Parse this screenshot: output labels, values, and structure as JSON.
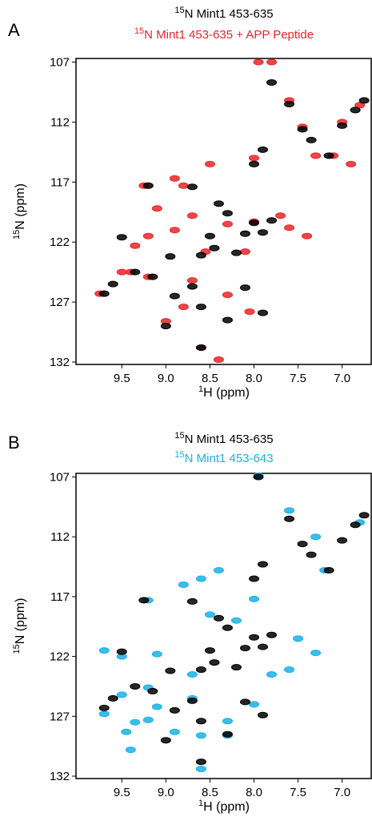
{
  "chart_data": [
    {
      "type": "scatter",
      "panel": "A",
      "series": [
        {
          "isotope": "15",
          "name": "N Mint1 453-635",
          "color": "#000000",
          "x": [
            7.8,
            7.6,
            7.45,
            7.35,
            7.0,
            6.85,
            6.75,
            7.15,
            7.9,
            8.0,
            9.2,
            8.7,
            8.4,
            8.3,
            8.0,
            7.8,
            7.9,
            8.1,
            8.5,
            8.45,
            8.2,
            8.6,
            9.5,
            8.95,
            9.35,
            9.15,
            8.7,
            9.6,
            9.7,
            8.9,
            7.9,
            8.6,
            9.0,
            8.6,
            8.3,
            8.1
          ],
          "values": [
            108.7,
            110.5,
            112.6,
            113.5,
            112.3,
            111.0,
            110.2,
            114.8,
            114.3,
            115.5,
            117.3,
            117.4,
            118.8,
            119.6,
            120.4,
            120.2,
            121.2,
            121.3,
            121.5,
            122.5,
            122.9,
            123.1,
            121.6,
            123.2,
            124.5,
            124.9,
            125.7,
            125.5,
            126.3,
            126.5,
            127.9,
            127.4,
            129.0,
            130.8,
            128.5,
            125.8
          ]
        },
        {
          "isotope": "15",
          "name": "N Mint1 453-635 + APP Peptide",
          "color": "#e8262a",
          "x": [
            7.95,
            7.8,
            7.6,
            7.45,
            7.0,
            6.8,
            7.1,
            9.25,
            8.8,
            8.5,
            8.9,
            9.1,
            8.7,
            8.3,
            8.0,
            7.7,
            7.6,
            7.4,
            8.9,
            9.2,
            9.35,
            8.55,
            8.1,
            9.4,
            9.2,
            8.7,
            9.5,
            9.75,
            8.3,
            8.8,
            9.0,
            8.05,
            8.6,
            8.4,
            8.0,
            7.3,
            6.9
          ],
          "values": [
            107.0,
            107.0,
            110.2,
            112.4,
            112.0,
            110.6,
            114.8,
            117.3,
            117.3,
            115.5,
            116.7,
            119.2,
            119.8,
            120.5,
            120.3,
            119.8,
            120.8,
            121.5,
            121.0,
            121.5,
            122.3,
            122.8,
            122.8,
            124.5,
            124.9,
            125.2,
            124.5,
            126.3,
            126.4,
            127.4,
            128.6,
            127.8,
            130.8,
            131.8,
            115.0,
            114.8,
            115.5
          ]
        }
      ],
      "x_label": {
        "sup": "1",
        "text": "H (ppm)"
      },
      "y_label": {
        "sup": "15",
        "text": "N (ppm)"
      },
      "xlim": [
        10.02,
        6.67
      ],
      "ylim": [
        106.7,
        132.2
      ],
      "xticks": [
        {
          "value": 9.5,
          "label": "9.5"
        },
        {
          "value": 9.0,
          "label": "9.0"
        },
        {
          "value": 8.5,
          "label": "8.5"
        },
        {
          "value": 8.0,
          "label": "8.0"
        },
        {
          "value": 7.5,
          "label": "7.5"
        },
        {
          "value": 7.0,
          "label": "7.0"
        }
      ],
      "yticks": [
        107,
        112,
        117,
        122,
        127,
        132
      ]
    },
    {
      "type": "scatter",
      "panel": "B",
      "series": [
        {
          "isotope": "15",
          "name": "N Mint1 453-635",
          "color": "#000000",
          "x": [
            7.95,
            7.6,
            7.45,
            7.35,
            7.0,
            6.85,
            6.75,
            7.15,
            7.9,
            8.0,
            9.25,
            8.7,
            8.4,
            8.3,
            8.0,
            7.8,
            7.9,
            8.1,
            8.5,
            8.45,
            8.2,
            8.6,
            9.5,
            8.95,
            9.35,
            9.15,
            8.7,
            9.6,
            9.7,
            8.9,
            7.9,
            8.6,
            9.0,
            8.6,
            8.3,
            8.1
          ],
          "values": [
            107.0,
            110.5,
            112.6,
            113.5,
            112.3,
            111.0,
            110.2,
            114.8,
            114.3,
            115.5,
            117.3,
            117.4,
            118.8,
            119.6,
            120.4,
            120.2,
            121.2,
            121.3,
            121.5,
            122.5,
            122.9,
            123.1,
            121.6,
            123.2,
            124.5,
            124.9,
            125.7,
            125.5,
            126.3,
            126.5,
            126.9,
            127.4,
            129.0,
            130.8,
            128.5,
            125.8
          ]
        },
        {
          "isotope": "15",
          "name": "N Mint1 453-643",
          "color": "#1ab2e6",
          "x": [
            7.95,
            7.6,
            7.3,
            6.8,
            7.2,
            9.7,
            9.2,
            8.8,
            8.6,
            8.4,
            8.5,
            8.2,
            8.0,
            7.5,
            7.3,
            7.6,
            9.5,
            9.1,
            8.7,
            9.2,
            9.5,
            9.7,
            9.1,
            9.2,
            9.45,
            8.9,
            8.6,
            8.3,
            9.4,
            8.6,
            8.3,
            8.0,
            7.8,
            8.7,
            9.35
          ],
          "values": [
            106.9,
            109.8,
            112.0,
            110.8,
            114.8,
            121.5,
            117.3,
            116.0,
            115.5,
            114.8,
            118.5,
            119.0,
            117.2,
            120.5,
            121.7,
            123.1,
            122.0,
            121.8,
            123.5,
            124.6,
            125.2,
            126.8,
            126.2,
            127.3,
            128.3,
            128.3,
            128.6,
            128.6,
            129.8,
            131.4,
            127.4,
            126.0,
            123.5,
            125.5,
            127.5
          ]
        }
      ],
      "x_label": {
        "sup": "1",
        "text": "H (ppm)"
      },
      "y_label": {
        "sup": "15",
        "text": "N (ppm)"
      },
      "xlim": [
        10.02,
        6.67
      ],
      "ylim": [
        106.7,
        132.2
      ],
      "xticks": [
        {
          "value": 9.5,
          "label": "9.5"
        },
        {
          "value": 9.0,
          "label": "9.0"
        },
        {
          "value": 8.5,
          "label": "8.5"
        },
        {
          "value": 8.0,
          "label": "8.0"
        },
        {
          "value": 7.5,
          "label": "7.5"
        },
        {
          "value": 7.0,
          "label": "7.0"
        }
      ],
      "yticks": [
        107,
        112,
        117,
        122,
        127,
        132
      ]
    }
  ]
}
